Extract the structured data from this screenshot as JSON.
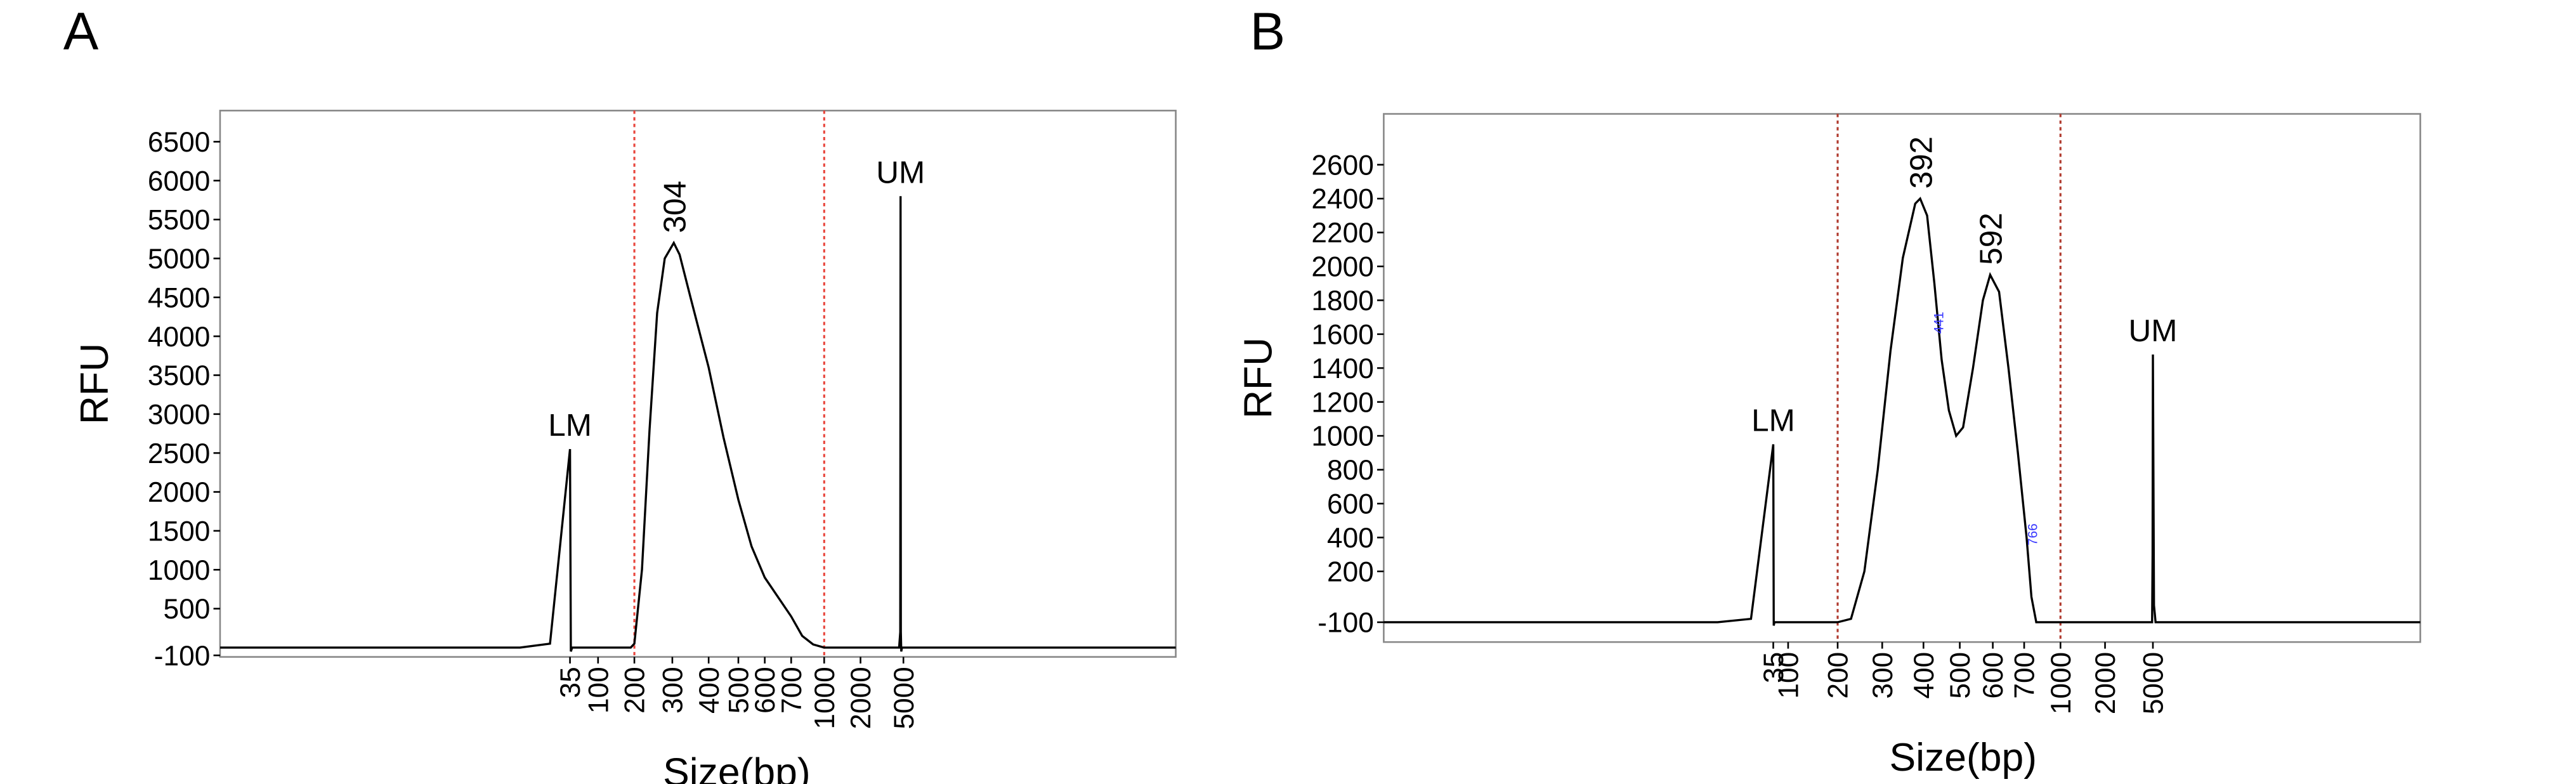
{
  "chart_data": [
    {
      "type": "line",
      "panel": "A",
      "xlabel": "Size(bp)",
      "ylabel": "RFU",
      "color": "#000000",
      "xlim": [
        0,
        10000
      ],
      "ylim": [
        -120,
        6900
      ],
      "xticks": [
        35,
        100,
        200,
        300,
        400,
        500,
        600,
        700,
        1000,
        2000,
        5000
      ],
      "yticks": [
        -100,
        500,
        1000,
        1500,
        2000,
        2500,
        3000,
        3500,
        4000,
        4500,
        5000,
        5500,
        6000,
        6500
      ],
      "region": [
        200,
        1000
      ],
      "region_color": "#e8453c",
      "x": [
        0,
        30,
        33,
        35,
        37,
        40,
        100,
        190,
        200,
        220,
        240,
        260,
        280,
        304,
        320,
        350,
        400,
        450,
        500,
        550,
        600,
        700,
        800,
        900,
        1000,
        2000,
        4700,
        4780,
        4800,
        4820,
        4850,
        4900,
        10000
      ],
      "values": [
        0,
        0,
        50,
        2550,
        -50,
        0,
        0,
        0,
        50,
        1000,
        2800,
        4300,
        5000,
        5200,
        5050,
        4500,
        3600,
        2700,
        1900,
        1300,
        900,
        400,
        150,
        40,
        0,
        0,
        0,
        200,
        5800,
        200,
        -50,
        0,
        0
      ],
      "annotations": [
        {
          "text": "LM",
          "x": 35,
          "y": 2550,
          "rotation": 0,
          "color": "#000000"
        },
        {
          "text": "304",
          "x": 304,
          "y": 5200,
          "rotation": 90,
          "color": "#000000"
        },
        {
          "text": "UM",
          "x": 4800,
          "y": 5800,
          "rotation": 0,
          "color": "#000000"
        }
      ]
    },
    {
      "type": "line",
      "panel": "B",
      "xlabel": "Size(bp)",
      "ylabel": "RFU",
      "color": "#000000",
      "xlim": [
        0,
        10000
      ],
      "ylim": [
        -217,
        2900
      ],
      "xticks": [
        35,
        100,
        200,
        300,
        400,
        500,
        600,
        700,
        1000,
        2000,
        5000
      ],
      "yticks": [
        -100,
        200,
        400,
        600,
        800,
        1000,
        1200,
        1400,
        1600,
        1800,
        2000,
        2200,
        2400,
        2600
      ],
      "region": [
        200,
        1000
      ],
      "region_color": "#b03a2e",
      "x": [
        0,
        30,
        33,
        35,
        37,
        40,
        200,
        230,
        260,
        290,
        320,
        350,
        380,
        392,
        410,
        430,
        450,
        470,
        490,
        510,
        540,
        570,
        592,
        620,
        650,
        680,
        720,
        760,
        800,
        4950,
        4980,
        5000,
        5020,
        5050,
        10000
      ],
      "values": [
        -100,
        -100,
        -80,
        950,
        -120,
        -100,
        -100,
        -80,
        200,
        800,
        1500,
        2050,
        2370,
        2400,
        2300,
        1900,
        1450,
        1150,
        1000,
        1050,
        1400,
        1800,
        1950,
        1850,
        1400,
        900,
        400,
        50,
        -100,
        -100,
        300,
        1480,
        0,
        -100,
        -100
      ],
      "annotations": [
        {
          "text": "LM",
          "x": 35,
          "y": 950,
          "rotation": 0,
          "color": "#000000"
        },
        {
          "text": "392",
          "x": 392,
          "y": 2400,
          "rotation": 90,
          "color": "#000000"
        },
        {
          "text": "592",
          "x": 592,
          "y": 1950,
          "rotation": 90,
          "color": "#000000"
        },
        {
          "text": "441",
          "x": 441,
          "y": 1700,
          "rotation": 90,
          "color": "#3a3aff"
        },
        {
          "text": "766",
          "x": 766,
          "y": 450,
          "rotation": 90,
          "color": "#3a3aff"
        },
        {
          "text": "UM",
          "x": 5000,
          "y": 1480,
          "rotation": 0,
          "color": "#000000"
        }
      ]
    }
  ]
}
